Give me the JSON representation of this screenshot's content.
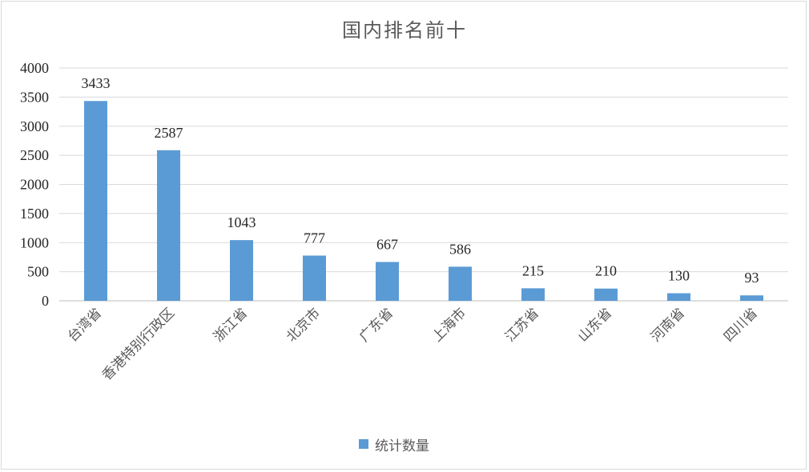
{
  "chart_data": {
    "type": "bar",
    "title": "国内排名前十",
    "categories": [
      "台湾省",
      "香港特别行政区",
      "浙江省",
      "北京市",
      "广东省",
      "上海市",
      "江苏省",
      "山东省",
      "河南省",
      "四川省"
    ],
    "series": [
      {
        "name": "统计数量",
        "values": [
          3433,
          2587,
          1043,
          777,
          667,
          586,
          215,
          210,
          130,
          93
        ],
        "color": "#5b9bd5"
      }
    ],
    "yticks": [
      "0",
      "500",
      "1000",
      "1500",
      "2000",
      "2500",
      "3000",
      "3500",
      "4000"
    ],
    "ylim": [
      0,
      4000
    ],
    "grid": true,
    "legend_position": "bottom"
  }
}
